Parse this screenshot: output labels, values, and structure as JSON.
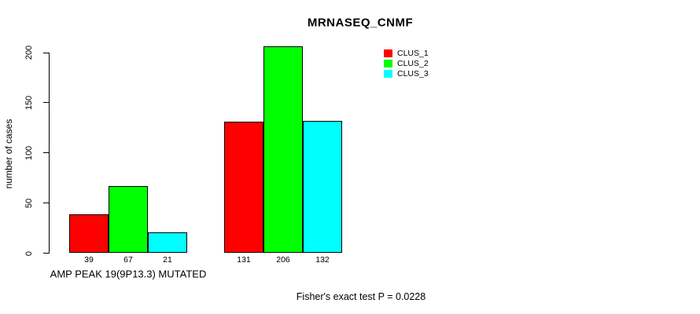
{
  "chart_data": {
    "type": "bar",
    "title": "MRNASEQ_CNMF",
    "ylabel": "number of cases",
    "xlabel": "",
    "categories": [
      "AMP PEAK 19(9P13.3) MUTATED",
      ""
    ],
    "series": [
      {
        "name": "CLUS_1",
        "color": "#FF0000",
        "values": [
          39,
          131
        ]
      },
      {
        "name": "CLUS_2",
        "color": "#00FF00",
        "values": [
          67,
          206
        ]
      },
      {
        "name": "CLUS_3",
        "color": "#00FFFF",
        "values": [
          21,
          132
        ]
      }
    ],
    "bar_value_labels": [
      [
        39,
        67,
        21
      ],
      [
        131,
        206,
        132
      ]
    ],
    "yticks": [
      0,
      50,
      100,
      150,
      200
    ],
    "ylim": [
      0,
      206
    ],
    "grid": false,
    "legend_position": "top-right",
    "annotation": "Fisher's exact test P = 0.0228"
  },
  "colors": {
    "bar_border": "#000000",
    "axis": "#000000",
    "text": "#000000",
    "background": "#FFFFFF"
  }
}
